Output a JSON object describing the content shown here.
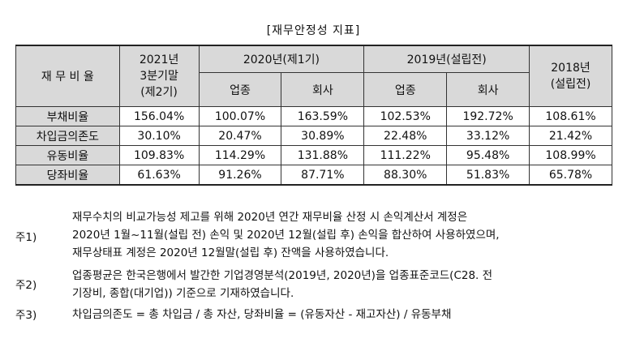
{
  "title": "[재무안정성 지표]",
  "table": {
    "header": {
      "row_label": "재 무 비 율",
      "col_2021": "2021년",
      "col_2021_sub1": "3분기말",
      "col_2021_sub2": "(제2기)",
      "col_2020": "2020년(제1기)",
      "col_2019": "2019년(설립전)",
      "col_2018_1": "2018년",
      "col_2018_2": "(설립전)",
      "industry": "업종",
      "company": "회사"
    },
    "rows": [
      {
        "label": "부채비율",
        "v2021": "156.04%",
        "v2020_ind": "100.07%",
        "v2020_co": "163.59%",
        "v2019_ind": "102.53%",
        "v2019_co": "192.72%",
        "v2018": "108.61%"
      },
      {
        "label": "차입금의존도",
        "v2021": "30.10%",
        "v2020_ind": "20.47%",
        "v2020_co": "30.89%",
        "v2019_ind": "22.48%",
        "v2019_co": "33.12%",
        "v2018": "21.42%"
      },
      {
        "label": "유동비율",
        "v2021": "109.83%",
        "v2020_ind": "114.29%",
        "v2020_co": "131.88%",
        "v2019_ind": "111.22%",
        "v2019_co": "95.48%",
        "v2018": "108.99%"
      },
      {
        "label": "당좌비율",
        "v2021": "61.63%",
        "v2020_ind": "91.26%",
        "v2020_co": "87.71%",
        "v2019_ind": "88.30%",
        "v2019_co": "51.83%",
        "v2018": "65.78%"
      }
    ]
  },
  "notes": [
    {
      "tag": "주1)",
      "lines": [
        "재무수치의 비교가능성 제고를 위해 2020년 연간 재무비율 산정 시 손익계산서 계정은",
        "2020년 1월~11월(설립 전) 손익 및 2020년 12월(설립 후) 손익을 합산하여 사용하였으며,",
        "재무상태표 계정은 2020년 12월말(설립 후) 잔액을 사용하였습니다."
      ]
    },
    {
      "tag": "주2)",
      "lines": [
        "업종평균은 한국은행에서 발간한 기업경영분석(2019년, 2020년)을 업종표준코드(C28. 전",
        "기장비, 종합(대기업)) 기준으로 기재하였습니다."
      ]
    },
    {
      "tag": "주3)",
      "lines": [
        "차입금의존도 = 총 차입금 / 총 자산, 당좌비율 = (유동자산 - 재고자산) / 유동부채"
      ]
    }
  ]
}
